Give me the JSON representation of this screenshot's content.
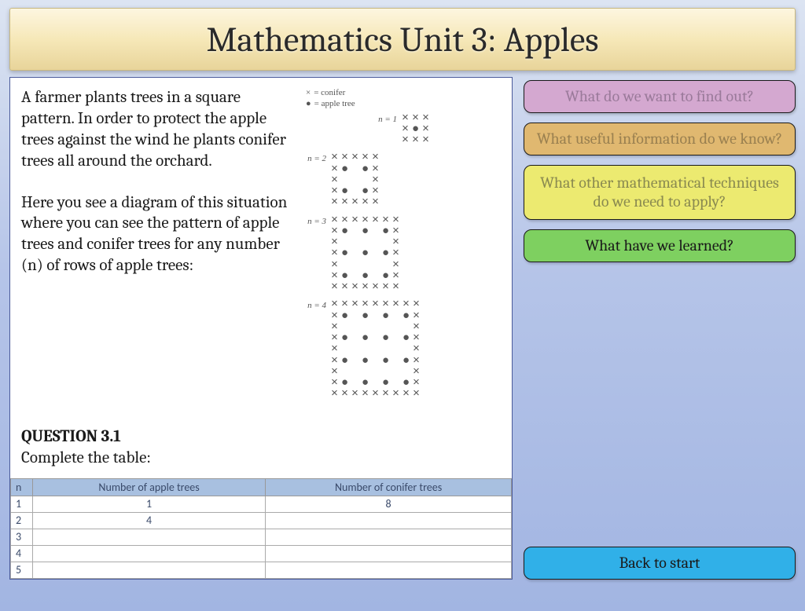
{
  "title": "Mathematics Unit 3: Apples",
  "content": {
    "para1": "A farmer plants trees in a square pattern.  In order to protect the apple trees against the wind he plants conifer trees all around the orchard.",
    "para2": "Here you see a diagram of this situation where you can see the pattern of apple trees and conifer trees for any number (n) of rows of apple trees:",
    "question_label": "QUESTION 3.1",
    "question_text": "Complete the table:"
  },
  "legend": {
    "conifer_symbol": "×",
    "conifer_label": "= conifer",
    "apple_symbol": "●",
    "apple_label": "= apple tree"
  },
  "patterns": [
    {
      "label": "n = 1",
      "rows": [
        "×××",
        "×●×",
        "×××"
      ]
    },
    {
      "label": "n = 2",
      "rows": [
        "×××××",
        "×● ●×",
        "×   ×",
        "×● ●×",
        "×××××"
      ]
    },
    {
      "label": "n = 3",
      "rows": [
        "×××××××",
        "×● ● ●×",
        "×     ×",
        "×● ● ●×",
        "×     ×",
        "×● ● ●×",
        "×××××××"
      ]
    },
    {
      "label": "n = 4",
      "rows": [
        "×××××××××",
        "×● ● ● ●×",
        "×       ×",
        "×● ● ● ●×",
        "×       ×",
        "×● ● ● ●×",
        "×       ×",
        "×● ● ● ●×",
        "×××××××××"
      ]
    }
  ],
  "table": {
    "columns": [
      "n",
      "Number of apple trees",
      "Number of conifer trees"
    ],
    "rows": [
      [
        "1",
        "1",
        "8"
      ],
      [
        "2",
        "4",
        ""
      ],
      [
        "3",
        "",
        ""
      ],
      [
        "4",
        "",
        ""
      ],
      [
        "5",
        "",
        ""
      ]
    ]
  },
  "sidebar": {
    "btn1": "What do we want to find out?",
    "btn2": "What useful information do we know?",
    "btn3": "What other mathematical techniques do we need to apply?",
    "btn4": "What have we learned?",
    "btn5": "Back to start"
  },
  "colors": {
    "title_grad_top": "#fdf6e0",
    "title_grad_bot": "#e8d49a",
    "bg_top": "#dce4f2",
    "bg_bot": "#a2b5e2",
    "pink": "#d4a8d0",
    "orange": "#e0b870",
    "yellow": "#ecea70",
    "green": "#7ed060",
    "blue": "#30b0e8",
    "table_header": "#a8c0e0"
  }
}
